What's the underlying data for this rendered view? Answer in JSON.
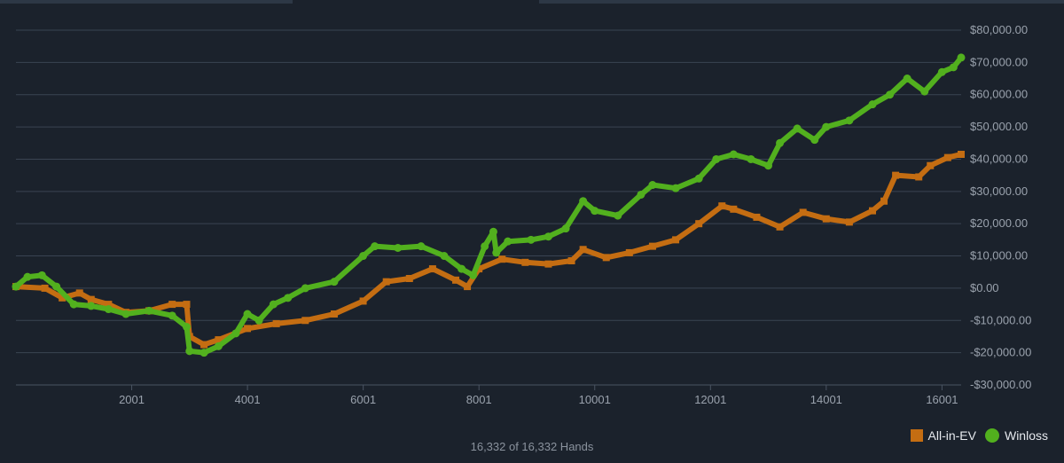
{
  "chart_data": {
    "type": "line",
    "footer": "16,332 of 16,332 Hands",
    "y_axis": {
      "min": -30000,
      "max": 80000,
      "ticks": [
        80000,
        70000,
        60000,
        50000,
        40000,
        30000,
        20000,
        10000,
        0,
        -10000,
        -20000,
        -30000
      ],
      "tick_labels": [
        "$80,000.00",
        "$70,000.00",
        "$60,000.00",
        "$50,000.00",
        "$40,000.00",
        "$30,000.00",
        "$20,000.00",
        "$10,000.00",
        "$0.00",
        "-$10,000.00",
        "-$20,000.00",
        "-$30,000.00"
      ],
      "position": "right",
      "grid": true
    },
    "x_axis": {
      "min": 1,
      "max": 16332,
      "ticks": [
        2001,
        4001,
        6001,
        8001,
        10001,
        12001,
        14001,
        16001
      ],
      "tick_labels": [
        "2001",
        "4001",
        "6001",
        "8001",
        "10001",
        "12001",
        "14001",
        "16001"
      ]
    },
    "legend": {
      "position": "bottom-right"
    },
    "series": [
      {
        "name": "All-in-EV",
        "color": "#c46d12",
        "marker": "square",
        "x": [
          1,
          500,
          800,
          1100,
          1300,
          1600,
          1900,
          2300,
          2700,
          2950,
          3000,
          3250,
          3500,
          4000,
          4500,
          5000,
          5500,
          6000,
          6400,
          6800,
          7200,
          7600,
          7800,
          8000,
          8400,
          8800,
          9200,
          9600,
          9800,
          10200,
          10600,
          11000,
          11400,
          11800,
          12200,
          12400,
          12800,
          13200,
          13600,
          14000,
          14400,
          14800,
          15000,
          15200,
          15600,
          15800,
          16100,
          16332
        ],
        "y": [
          500,
          0,
          -3000,
          -1500,
          -3500,
          -5000,
          -7500,
          -7000,
          -5000,
          -5000,
          -15000,
          -17500,
          -16000,
          -12500,
          -11000,
          -10000,
          -8000,
          -4000,
          2000,
          3000,
          6000,
          2500,
          500,
          6000,
          9000,
          8000,
          7500,
          8500,
          12000,
          9500,
          11000,
          13000,
          15000,
          20000,
          25500,
          24500,
          22000,
          19000,
          23500,
          21500,
          20500,
          24000,
          27000,
          35000,
          34500,
          38000,
          40500,
          41500
        ]
      },
      {
        "name": "Winloss",
        "color": "#52b01e",
        "marker": "circle",
        "x": [
          1,
          200,
          450,
          700,
          1000,
          1300,
          1600,
          1900,
          2300,
          2700,
          2950,
          3000,
          3250,
          3500,
          3800,
          4000,
          4200,
          4450,
          4700,
          5000,
          5500,
          6000,
          6200,
          6600,
          7000,
          7400,
          7700,
          7900,
          8100,
          8250,
          8300,
          8500,
          8900,
          9200,
          9500,
          9800,
          10000,
          10400,
          10800,
          11000,
          11400,
          11800,
          12100,
          12400,
          12700,
          13000,
          13200,
          13500,
          13800,
          14000,
          14400,
          14800,
          15100,
          15400,
          15700,
          16000,
          16200,
          16332
        ],
        "y": [
          500,
          3500,
          4000,
          500,
          -5000,
          -5500,
          -6500,
          -8000,
          -7000,
          -8500,
          -12000,
          -19500,
          -20000,
          -18000,
          -14000,
          -8000,
          -10000,
          -5000,
          -3000,
          0,
          2000,
          10000,
          13000,
          12500,
          13000,
          10000,
          6000,
          4000,
          13000,
          17500,
          11000,
          14500,
          15000,
          16000,
          18500,
          27000,
          24000,
          22500,
          29000,
          32000,
          31000,
          34000,
          40000,
          41500,
          40000,
          38000,
          45000,
          49500,
          46000,
          50000,
          52000,
          57000,
          60000,
          65000,
          61000,
          67000,
          68500,
          71500
        ]
      }
    ]
  }
}
